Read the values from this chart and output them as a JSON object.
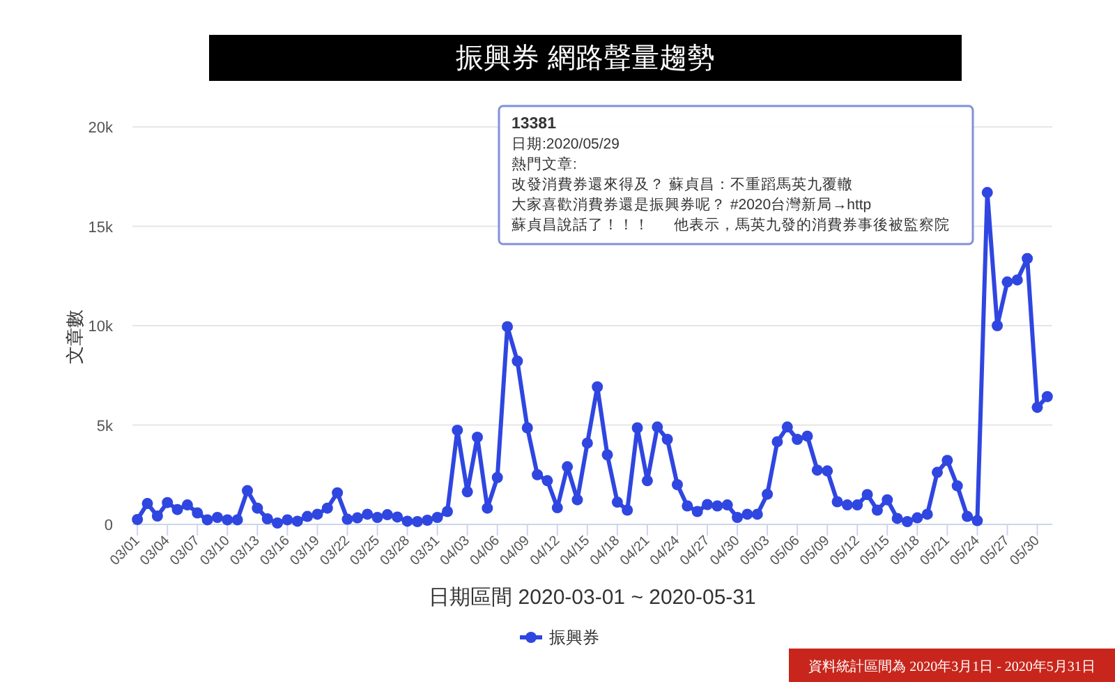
{
  "chart_data": {
    "type": "line",
    "title": "振興券 網路聲量趨勢",
    "xlabel": "日期區間 2020-03-01 ~ 2020-05-31",
    "ylabel": "文章數",
    "categories": [
      "03/01",
      null,
      null,
      "03/04",
      null,
      null,
      "03/07",
      null,
      null,
      "03/10",
      null,
      null,
      "03/13",
      null,
      null,
      "03/16",
      null,
      null,
      "03/19",
      null,
      null,
      "03/22",
      null,
      null,
      "03/25",
      null,
      null,
      "03/28",
      null,
      null,
      "03/31",
      null,
      null,
      "04/03",
      null,
      null,
      "04/06",
      null,
      null,
      "04/09",
      null,
      null,
      "04/12",
      null,
      null,
      "04/15",
      null,
      null,
      "04/18",
      null,
      null,
      "04/21",
      null,
      null,
      "04/24",
      null,
      null,
      "04/27",
      null,
      null,
      "04/30",
      null,
      null,
      "05/03",
      null,
      null,
      "05/06",
      null,
      null,
      "05/09",
      null,
      null,
      "05/12",
      null,
      null,
      "05/15",
      null,
      null,
      "05/18",
      null,
      null,
      "05/21",
      null,
      null,
      "05/24",
      null,
      null,
      "05/27",
      null,
      null,
      "05/30",
      null
    ],
    "series": [
      {
        "name": "振興券",
        "color": "#2f46e0",
        "values": [
          250,
          1050,
          420,
          1100,
          750,
          980,
          580,
          230,
          350,
          230,
          230,
          1700,
          820,
          280,
          70,
          230,
          160,
          400,
          510,
          820,
          1590,
          260,
          330,
          510,
          350,
          490,
          370,
          160,
          140,
          210,
          350,
          650,
          4740,
          1640,
          4390,
          820,
          2360,
          9950,
          8220,
          4860,
          2500,
          2200,
          840,
          2900,
          1240,
          4090,
          6920,
          3500,
          1120,
          720,
          4860,
          2200,
          4900,
          4280,
          2000,
          930,
          650,
          1000,
          930,
          980,
          350,
          510,
          510,
          1520,
          4160,
          4900,
          4280,
          4440,
          2730,
          2690,
          1140,
          980,
          980,
          1500,
          720,
          1240,
          300,
          140,
          330,
          510,
          2620,
          3220,
          1940,
          400,
          190,
          16700,
          10000,
          12200,
          12300,
          13381,
          5890,
          6430
        ]
      }
    ],
    "ylim": [
      0,
      20000
    ],
    "yticks": [
      0,
      {
        "value": 5000,
        "label": "5k"
      },
      {
        "value": 10000,
        "label": "10k"
      },
      {
        "value": 15000,
        "label": "15k"
      },
      {
        "value": 20000,
        "label": "20k"
      }
    ],
    "grid": "y",
    "legend": "bottom",
    "marker": "circle",
    "line_style": "solid",
    "annotations": [
      "13381",
      "日期:2020/05/29",
      "熱門文章:",
      "改發消費券還來得及？ 蘇貞昌：不重蹈馬英九覆轍",
      "大家喜歡消費券還是振興券呢？ #2020台灣新局→http",
      "蘇貞昌說話了！！！      他表示，馬英九發的消費券事後被監察院",
      "資料統計區間為 2020年3月1日 - 2020年5月31日"
    ]
  }
}
